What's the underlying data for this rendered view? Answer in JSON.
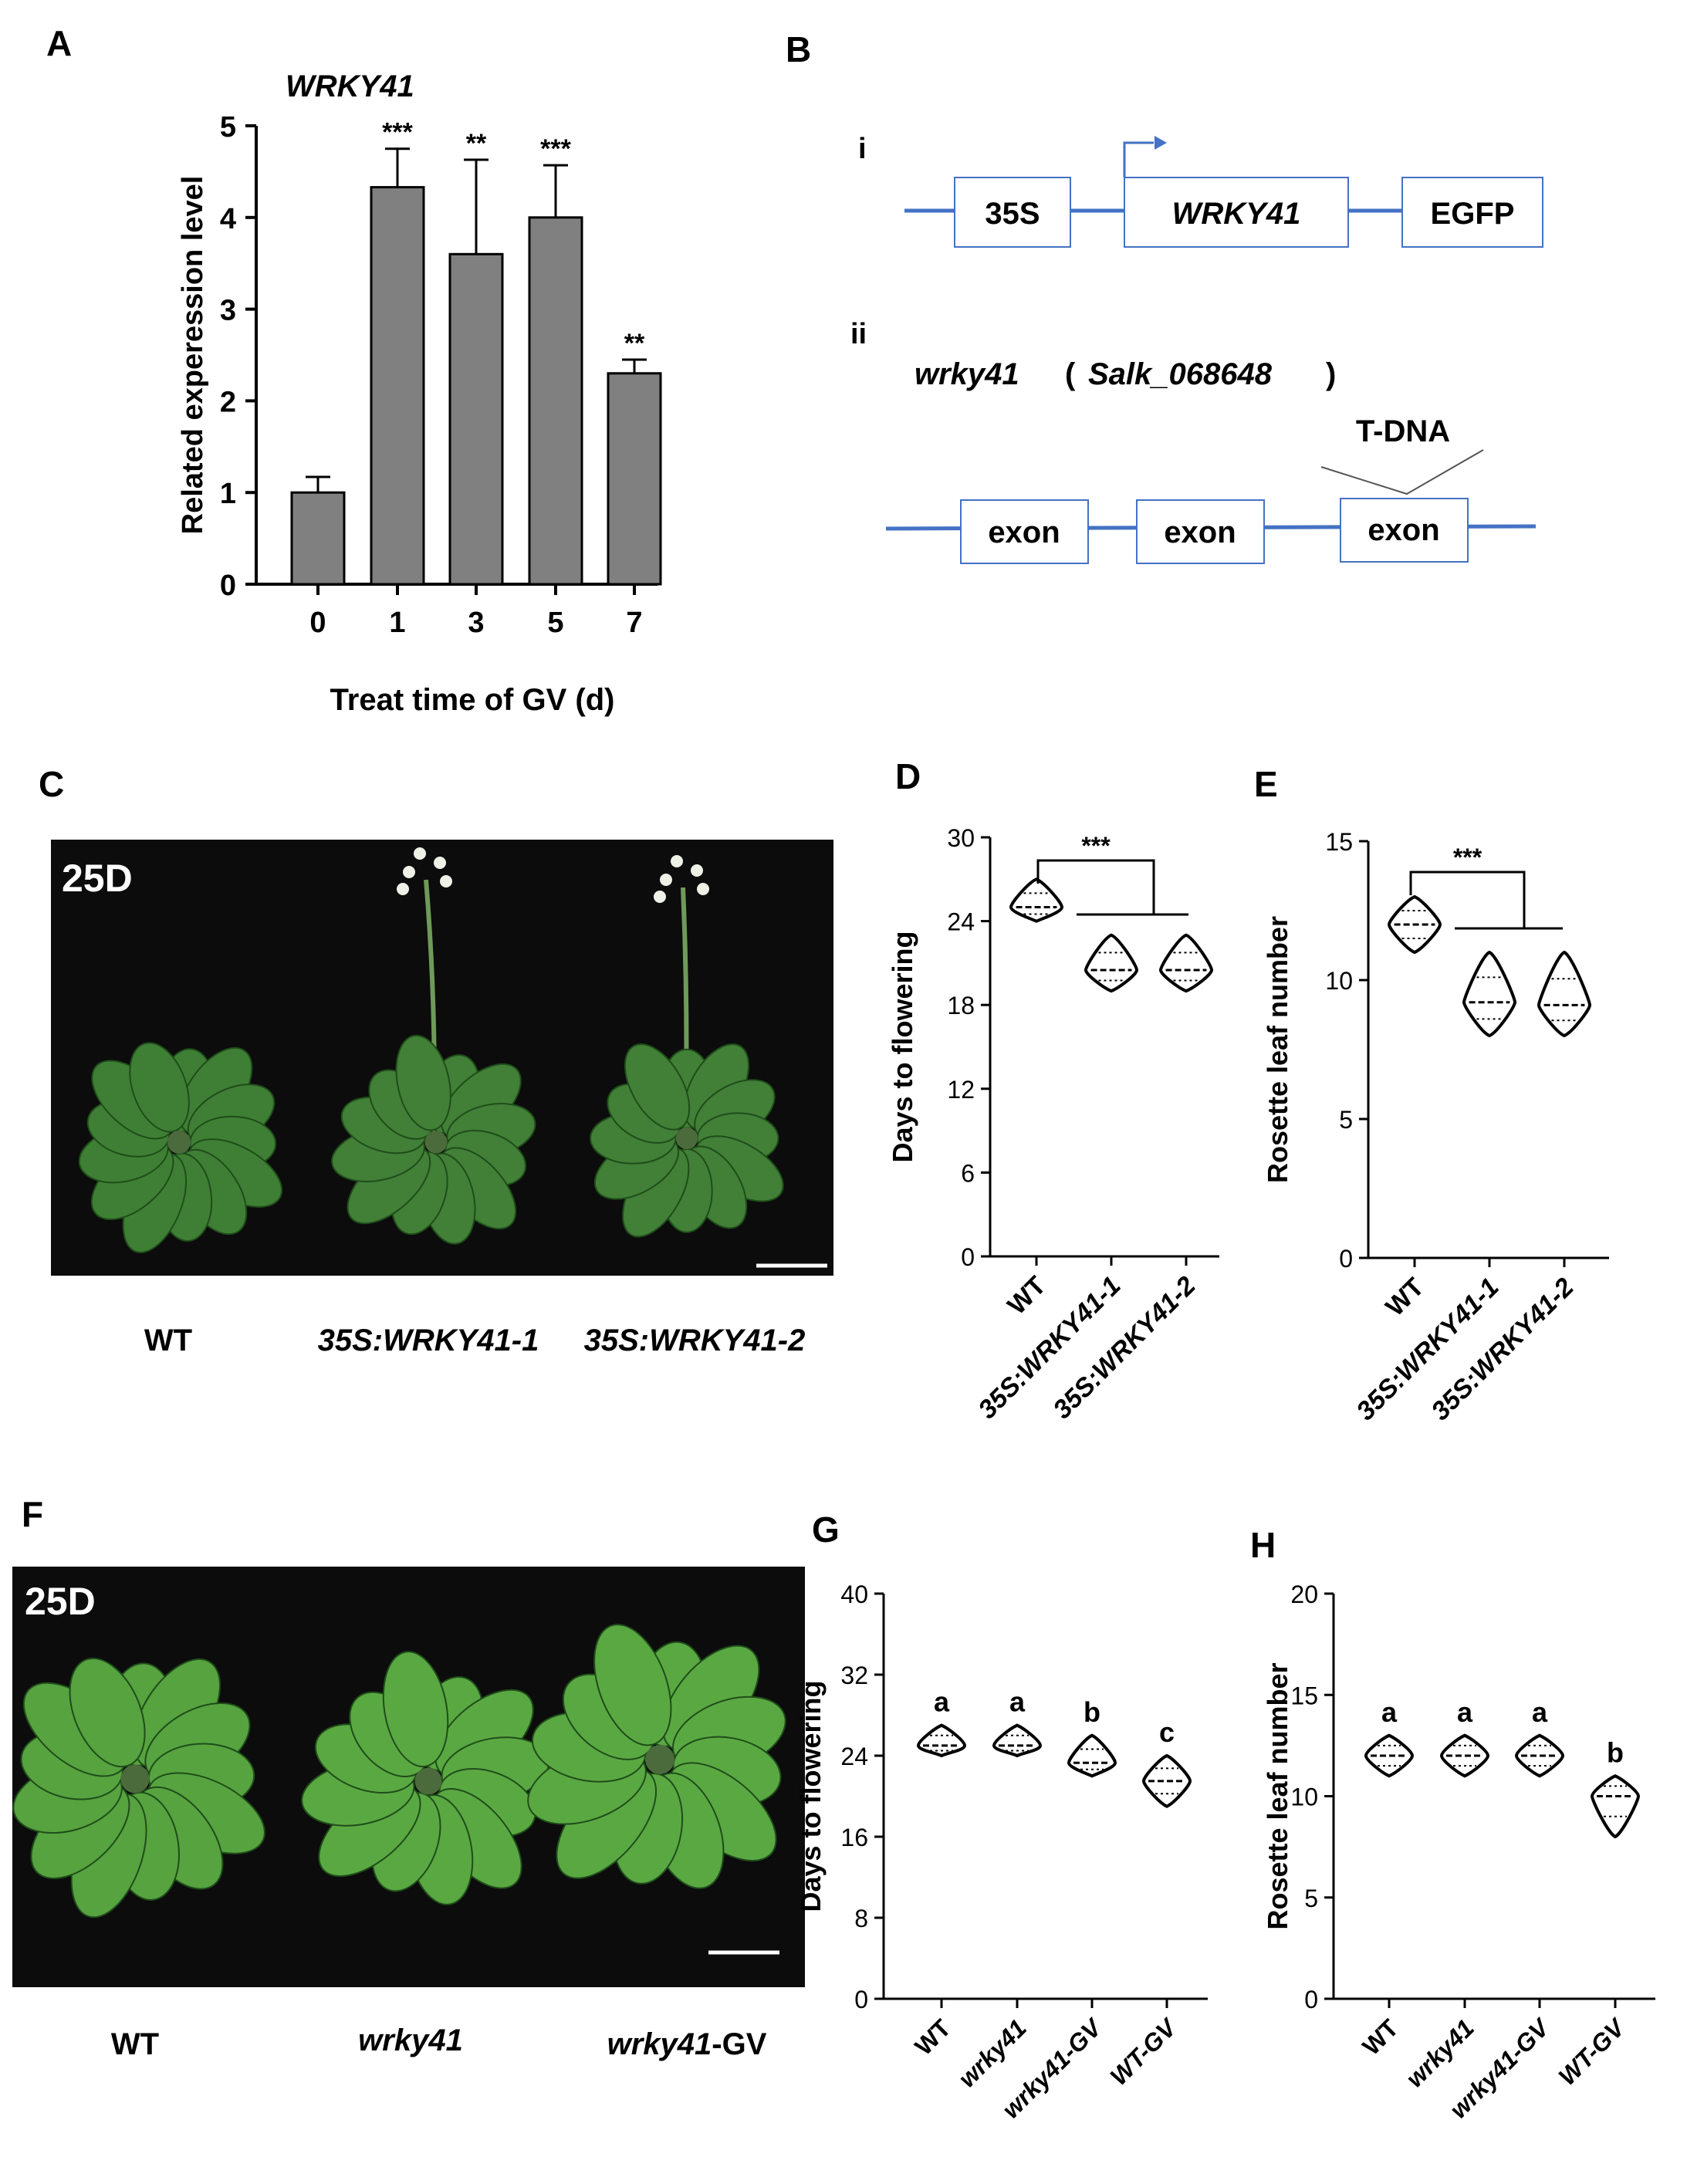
{
  "panel_letters": {
    "A": "A",
    "B": "B",
    "C": "C",
    "D": "D",
    "E": "E",
    "F": "F",
    "G": "G",
    "H": "H"
  },
  "panel_A": {
    "title": "WRKY41",
    "ylabel": "Related experession level",
    "xlabel": "Treat time of GV (d)"
  },
  "panel_B": {
    "row_i": "i",
    "row_ii": "ii",
    "construct_i": [
      "35S",
      "WRKY41",
      "EGFP"
    ],
    "mutant_gene": "wrky41",
    "mutant_open": "(",
    "mutant_line": "Salk_068648",
    "mutant_close": ")",
    "insertion_label": "T-DNA",
    "exons": [
      "exon",
      "exon",
      "exon"
    ],
    "line_color": "#4472c4"
  },
  "panel_C": {
    "photo_label": "25D",
    "genotypes": [
      "WT",
      "35S:WRKY41-1",
      "35S:WRKY41-2"
    ]
  },
  "panel_F": {
    "photo_label": "25D",
    "genotype_1": "WT",
    "genotype_2": "wrky41",
    "genotype_3_italic": "wrky41",
    "genotype_3_plain": "-GV"
  },
  "chart_data": [
    {
      "panel": "A",
      "type": "bar",
      "title": "WRKY41",
      "ylabel": "Related experession level",
      "xlabel": "Treat time of GV (d)",
      "categories": [
        "0",
        "1",
        "3",
        "5",
        "7"
      ],
      "values": [
        1.0,
        4.33,
        3.6,
        4.0,
        2.3
      ],
      "errors": [
        0.17,
        0.42,
        1.03,
        0.57,
        0.15
      ],
      "significance": [
        "",
        "***",
        "**",
        "***",
        "**"
      ],
      "ylim": [
        0,
        5
      ],
      "yticks": [
        0,
        1,
        2,
        3,
        4,
        5
      ],
      "bar_color": "#808080"
    },
    {
      "panel": "D",
      "type": "violin",
      "ylabel": "Days to flowering",
      "categories": [
        "WT",
        "35S:WRKY41-1",
        "35S:WRKY41-2"
      ],
      "medians": [
        25,
        20.5,
        20.5
      ],
      "ranges": [
        [
          24,
          27
        ],
        [
          19,
          23
        ],
        [
          19,
          23
        ]
      ],
      "ylim": [
        0,
        30
      ],
      "yticks": [
        0,
        6,
        12,
        18,
        24,
        30
      ],
      "significance": "***"
    },
    {
      "panel": "E",
      "type": "violin",
      "ylabel": "Rosette leaf number",
      "categories": [
        "WT",
        "35S:WRKY41-1",
        "35S:WRKY41-2"
      ],
      "medians": [
        12,
        9.2,
        9.1
      ],
      "ranges": [
        [
          11,
          13
        ],
        [
          8,
          11
        ],
        [
          8,
          11
        ]
      ],
      "ylim": [
        0,
        15
      ],
      "yticks": [
        0,
        5,
        10,
        15
      ],
      "significance": "***"
    },
    {
      "panel": "G",
      "type": "violin",
      "ylabel": "Days to flowering",
      "categories": [
        "WT",
        "wrky41",
        "wrky41-GV",
        "WT-GV"
      ],
      "medians": [
        25,
        25,
        23.3,
        21.5
      ],
      "ranges": [
        [
          24,
          27
        ],
        [
          24,
          27
        ],
        [
          22,
          26
        ],
        [
          19,
          24
        ]
      ],
      "letters": [
        "a",
        "a",
        "b",
        "c"
      ],
      "ylim": [
        0,
        40
      ],
      "yticks": [
        0,
        8,
        16,
        24,
        32,
        40
      ]
    },
    {
      "panel": "H",
      "type": "violin",
      "ylabel": "Rosette leaf number",
      "categories": [
        "WT",
        "wrky41",
        "wrky41-GV",
        "WT-GV"
      ],
      "medians": [
        12,
        12,
        12,
        10
      ],
      "ranges": [
        [
          11,
          13
        ],
        [
          11,
          13
        ],
        [
          11,
          13
        ],
        [
          8,
          11
        ]
      ],
      "letters": [
        "a",
        "a",
        "a",
        "b"
      ],
      "ylim": [
        0,
        20
      ],
      "yticks": [
        0,
        5,
        10,
        15,
        20
      ]
    }
  ]
}
